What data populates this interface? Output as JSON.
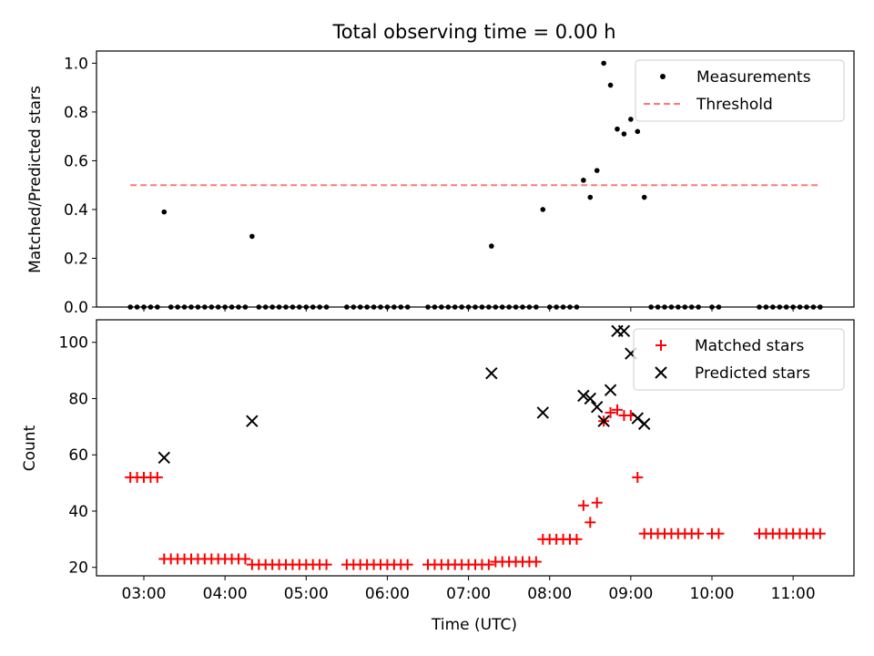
{
  "chart_data": [
    {
      "type": "scatter",
      "title": "Total observing time = 0.00 h",
      "xlabel": "",
      "ylabel": "Matched/Predicted stars",
      "ylim": [
        0.0,
        1.05
      ],
      "yticks": [
        "0.0",
        "0.2",
        "0.4",
        "0.6",
        "0.8",
        "1.0"
      ],
      "legend_position": "top-right",
      "series": [
        {
          "name": "Measurements",
          "color": "#000000",
          "marker": "dot",
          "points": [
            [
              "02:50",
              0
            ],
            [
              "02:55",
              0
            ],
            [
              "03:00",
              0
            ],
            [
              "03:05",
              0
            ],
            [
              "03:10",
              0
            ],
            [
              "03:15",
              0.39
            ],
            [
              "03:20",
              0
            ],
            [
              "03:25",
              0
            ],
            [
              "03:30",
              0
            ],
            [
              "03:35",
              0
            ],
            [
              "03:40",
              0
            ],
            [
              "03:45",
              0
            ],
            [
              "03:50",
              0
            ],
            [
              "03:55",
              0
            ],
            [
              "04:00",
              0
            ],
            [
              "04:05",
              0
            ],
            [
              "04:10",
              0
            ],
            [
              "04:15",
              0
            ],
            [
              "04:20",
              0.29
            ],
            [
              "04:25",
              0
            ],
            [
              "04:30",
              0
            ],
            [
              "04:35",
              0
            ],
            [
              "04:40",
              0
            ],
            [
              "04:45",
              0
            ],
            [
              "04:50",
              0
            ],
            [
              "04:55",
              0
            ],
            [
              "05:00",
              0
            ],
            [
              "05:05",
              0
            ],
            [
              "05:10",
              0
            ],
            [
              "05:15",
              0
            ],
            [
              "05:30",
              0
            ],
            [
              "05:35",
              0
            ],
            [
              "05:40",
              0
            ],
            [
              "05:45",
              0
            ],
            [
              "05:50",
              0
            ],
            [
              "05:55",
              0
            ],
            [
              "06:00",
              0
            ],
            [
              "06:05",
              0
            ],
            [
              "06:10",
              0
            ],
            [
              "06:15",
              0
            ],
            [
              "06:30",
              0
            ],
            [
              "06:35",
              0
            ],
            [
              "06:40",
              0
            ],
            [
              "06:45",
              0
            ],
            [
              "06:50",
              0
            ],
            [
              "06:55",
              0
            ],
            [
              "07:00",
              0
            ],
            [
              "07:05",
              0
            ],
            [
              "07:10",
              0
            ],
            [
              "07:15",
              0
            ],
            [
              "07:17",
              0.25
            ],
            [
              "07:20",
              0
            ],
            [
              "07:25",
              0
            ],
            [
              "07:30",
              0
            ],
            [
              "07:35",
              0
            ],
            [
              "07:40",
              0
            ],
            [
              "07:45",
              0
            ],
            [
              "07:50",
              0
            ],
            [
              "07:55",
              0.4
            ],
            [
              "08:00",
              0
            ],
            [
              "08:05",
              0
            ],
            [
              "08:10",
              0
            ],
            [
              "08:15",
              0
            ],
            [
              "08:20",
              0
            ],
            [
              "08:25",
              0.52
            ],
            [
              "08:30",
              0.45
            ],
            [
              "08:35",
              0.56
            ],
            [
              "08:40",
              1.0
            ],
            [
              "08:45",
              0.91
            ],
            [
              "08:50",
              0.73
            ],
            [
              "08:55",
              0.71
            ],
            [
              "09:00",
              0.77
            ],
            [
              "09:05",
              0.72
            ],
            [
              "09:10",
              0.45
            ],
            [
              "09:15",
              0
            ],
            [
              "09:20",
              0
            ],
            [
              "09:25",
              0
            ],
            [
              "09:30",
              0
            ],
            [
              "09:35",
              0
            ],
            [
              "09:40",
              0
            ],
            [
              "09:45",
              0
            ],
            [
              "09:50",
              0
            ],
            [
              "10:00",
              0
            ],
            [
              "10:05",
              0
            ],
            [
              "10:35",
              0
            ],
            [
              "10:40",
              0
            ],
            [
              "10:45",
              0
            ],
            [
              "10:50",
              0
            ],
            [
              "10:55",
              0
            ],
            [
              "11:00",
              0
            ],
            [
              "11:05",
              0
            ],
            [
              "11:10",
              0
            ],
            [
              "11:15",
              0
            ],
            [
              "11:20",
              0
            ]
          ]
        },
        {
          "name": "Threshold",
          "color": "#ff7878",
          "style": "dashed",
          "points": [
            [
              "02:50",
              0.5
            ],
            [
              "11:20",
              0.5
            ]
          ]
        }
      ]
    },
    {
      "type": "scatter",
      "title": "",
      "xlabel": "Time (UTC)",
      "ylabel": "Count",
      "xlim": [
        "02:25",
        "11:45"
      ],
      "ylim": [
        17,
        108
      ],
      "yticks": [
        "20",
        "40",
        "60",
        "80",
        "100"
      ],
      "xticks": [
        "03:00",
        "04:00",
        "05:00",
        "06:00",
        "07:00",
        "08:00",
        "09:00",
        "10:00",
        "11:00"
      ],
      "legend_position": "top-right",
      "series": [
        {
          "name": "Matched stars",
          "color": "#ff0000",
          "marker": "plus",
          "points": [
            [
              "02:50",
              52
            ],
            [
              "02:55",
              52
            ],
            [
              "03:00",
              52
            ],
            [
              "03:05",
              52
            ],
            [
              "03:10",
              52
            ],
            [
              "03:15",
              23
            ],
            [
              "03:20",
              23
            ],
            [
              "03:25",
              23
            ],
            [
              "03:30",
              23
            ],
            [
              "03:35",
              23
            ],
            [
              "03:40",
              23
            ],
            [
              "03:45",
              23
            ],
            [
              "03:50",
              23
            ],
            [
              "03:55",
              23
            ],
            [
              "04:00",
              23
            ],
            [
              "04:05",
              23
            ],
            [
              "04:10",
              23
            ],
            [
              "04:15",
              23
            ],
            [
              "04:20",
              21
            ],
            [
              "04:25",
              21
            ],
            [
              "04:30",
              21
            ],
            [
              "04:35",
              21
            ],
            [
              "04:40",
              21
            ],
            [
              "04:45",
              21
            ],
            [
              "04:50",
              21
            ],
            [
              "04:55",
              21
            ],
            [
              "05:00",
              21
            ],
            [
              "05:05",
              21
            ],
            [
              "05:10",
              21
            ],
            [
              "05:15",
              21
            ],
            [
              "05:30",
              21
            ],
            [
              "05:35",
              21
            ],
            [
              "05:40",
              21
            ],
            [
              "05:45",
              21
            ],
            [
              "05:50",
              21
            ],
            [
              "05:55",
              21
            ],
            [
              "06:00",
              21
            ],
            [
              "06:05",
              21
            ],
            [
              "06:10",
              21
            ],
            [
              "06:15",
              21
            ],
            [
              "06:30",
              21
            ],
            [
              "06:35",
              21
            ],
            [
              "06:40",
              21
            ],
            [
              "06:45",
              21
            ],
            [
              "06:50",
              21
            ],
            [
              "06:55",
              21
            ],
            [
              "07:00",
              21
            ],
            [
              "07:05",
              21
            ],
            [
              "07:10",
              21
            ],
            [
              "07:15",
              21
            ],
            [
              "07:20",
              22
            ],
            [
              "07:25",
              22
            ],
            [
              "07:30",
              22
            ],
            [
              "07:35",
              22
            ],
            [
              "07:40",
              22
            ],
            [
              "07:45",
              22
            ],
            [
              "07:50",
              22
            ],
            [
              "07:55",
              30
            ],
            [
              "08:00",
              30
            ],
            [
              "08:05",
              30
            ],
            [
              "08:10",
              30
            ],
            [
              "08:15",
              30
            ],
            [
              "08:20",
              30
            ],
            [
              "08:25",
              42
            ],
            [
              "08:30",
              36
            ],
            [
              "08:35",
              43
            ],
            [
              "08:40",
              72
            ],
            [
              "08:45",
              75
            ],
            [
              "08:50",
              76
            ],
            [
              "08:55",
              74
            ],
            [
              "09:00",
              74
            ],
            [
              "09:05",
              52
            ],
            [
              "09:10",
              32
            ],
            [
              "09:15",
              32
            ],
            [
              "09:20",
              32
            ],
            [
              "09:25",
              32
            ],
            [
              "09:30",
              32
            ],
            [
              "09:35",
              32
            ],
            [
              "09:40",
              32
            ],
            [
              "09:45",
              32
            ],
            [
              "09:50",
              32
            ],
            [
              "10:00",
              32
            ],
            [
              "10:05",
              32
            ],
            [
              "10:35",
              32
            ],
            [
              "10:40",
              32
            ],
            [
              "10:45",
              32
            ],
            [
              "10:50",
              32
            ],
            [
              "10:55",
              32
            ],
            [
              "11:00",
              32
            ],
            [
              "11:05",
              32
            ],
            [
              "11:10",
              32
            ],
            [
              "11:15",
              32
            ],
            [
              "11:20",
              32
            ]
          ]
        },
        {
          "name": "Predicted stars",
          "color": "#000000",
          "marker": "x",
          "points": [
            [
              "03:15",
              59
            ],
            [
              "04:20",
              72
            ],
            [
              "07:17",
              89
            ],
            [
              "07:55",
              75
            ],
            [
              "08:25",
              81
            ],
            [
              "08:30",
              80
            ],
            [
              "08:35",
              77
            ],
            [
              "08:40",
              72
            ],
            [
              "08:45",
              83
            ],
            [
              "08:50",
              104
            ],
            [
              "08:55",
              104
            ],
            [
              "09:00",
              96
            ],
            [
              "09:05",
              73
            ],
            [
              "09:10",
              71
            ]
          ]
        }
      ]
    }
  ]
}
